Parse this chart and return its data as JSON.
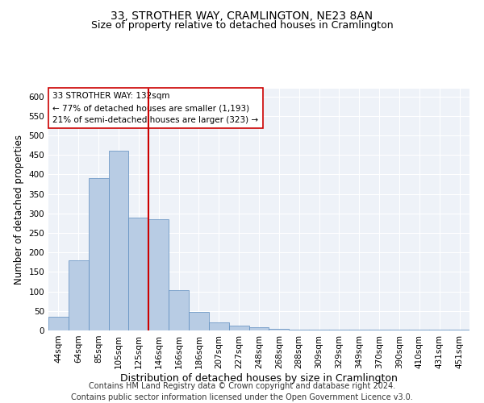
{
  "title": "33, STROTHER WAY, CRAMLINGTON, NE23 8AN",
  "subtitle": "Size of property relative to detached houses in Cramlington",
  "xlabel": "Distribution of detached houses by size in Cramlington",
  "ylabel": "Number of detached properties",
  "categories": [
    "44sqm",
    "64sqm",
    "85sqm",
    "105sqm",
    "125sqm",
    "146sqm",
    "166sqm",
    "186sqm",
    "207sqm",
    "227sqm",
    "248sqm",
    "268sqm",
    "288sqm",
    "309sqm",
    "329sqm",
    "349sqm",
    "370sqm",
    "390sqm",
    "410sqm",
    "431sqm",
    "451sqm"
  ],
  "values": [
    35,
    180,
    390,
    460,
    290,
    285,
    103,
    48,
    20,
    13,
    8,
    5,
    3,
    3,
    3,
    3,
    3,
    3,
    3,
    3,
    3
  ],
  "bar_color": "#b8cce4",
  "bar_edge_color": "#5b8cbf",
  "vline_color": "#cc0000",
  "annotation_lines": [
    "33 STROTHER WAY: 132sqm",
    "← 77% of detached houses are smaller (1,193)",
    "21% of semi-detached houses are larger (323) →"
  ],
  "ylim": [
    0,
    620
  ],
  "yticks": [
    0,
    50,
    100,
    150,
    200,
    250,
    300,
    350,
    400,
    450,
    500,
    550,
    600
  ],
  "footer": "Contains HM Land Registry data © Crown copyright and database right 2024.\nContains public sector information licensed under the Open Government Licence v3.0.",
  "background_color": "#eef2f8",
  "grid_color": "#ffffff",
  "title_fontsize": 10,
  "subtitle_fontsize": 9,
  "xlabel_fontsize": 9,
  "ylabel_fontsize": 8.5,
  "tick_fontsize": 7.5,
  "footer_fontsize": 7,
  "ann_fontsize": 7.5
}
